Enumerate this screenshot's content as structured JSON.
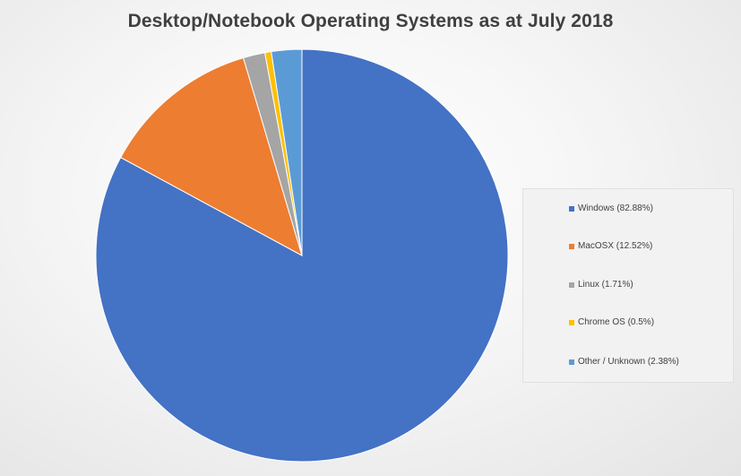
{
  "chart_data": {
    "type": "pie",
    "title": "Desktop/Notebook Operating Systems as at July 2018",
    "legend_position": "right",
    "slices": [
      {
        "label": "Windows",
        "legend_text": "Windows (82.88%)",
        "value": 82.88,
        "color": "#4472c4"
      },
      {
        "label": "MacOSX",
        "legend_text": "MacOSX (12.52%)",
        "value": 12.52,
        "color": "#ed7d31"
      },
      {
        "label": "Linux",
        "legend_text": "Linux (1.71%)",
        "value": 1.71,
        "color": "#a5a5a5"
      },
      {
        "label": "Chrome OS",
        "legend_text": "Chrome OS (0.5%)",
        "value": 0.5,
        "color": "#ffc000"
      },
      {
        "label": "Other / Unknown",
        "legend_text": "Other / Unknown (2.38%)",
        "value": 2.38,
        "color": "#5b9bd5"
      }
    ]
  }
}
